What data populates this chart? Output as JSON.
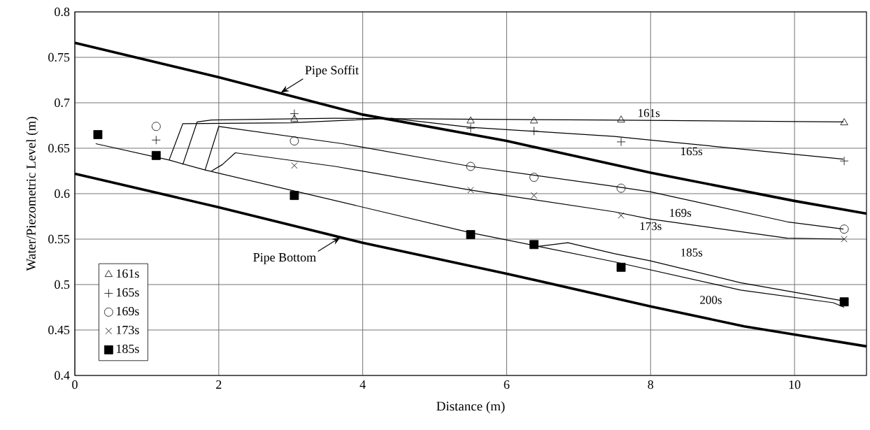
{
  "chart_data": {
    "type": "scatter",
    "xlabel": "Distance (m)",
    "ylabel": "Water/Piezometric Level (m)",
    "xlim": [
      0,
      11
    ],
    "xticks": [
      0,
      2,
      4,
      6,
      8,
      10
    ],
    "ylim": [
      0.4,
      0.8
    ],
    "yticks": [
      0.4,
      0.45,
      0.5,
      0.55,
      0.6,
      0.65,
      0.7,
      0.75,
      0.8
    ],
    "grid": true,
    "legend": "bottom left",
    "series": [
      {
        "type": "line",
        "marker": "none",
        "line_style": "solid",
        "color": "#000000",
        "x": [
          0,
          2,
          4,
          6,
          8,
          10,
          11
        ],
        "values": [
          0.766,
          0.728,
          0.687,
          0.658,
          0.623,
          0.592,
          0.578
        ]
      },
      {
        "type": "line",
        "marker": "none",
        "line_style": "solid",
        "color": "#000000",
        "x": [
          0,
          2,
          4,
          6,
          8,
          9.3,
          10,
          11
        ],
        "values": [
          0.622,
          0.585,
          0.546,
          0.512,
          0.476,
          0.454,
          0.445,
          0.432
        ]
      },
      {
        "name": "161s",
        "type": "line",
        "marker": "none",
        "line_style": "solid",
        "color": "#000000",
        "x": [
          1.5,
          1.7,
          1.9,
          3.6,
          7.31,
          10.68
        ],
        "values": [
          0.632,
          0.679,
          0.681,
          0.683,
          0.681,
          0.679
        ]
      },
      {
        "name": "165s",
        "type": "line",
        "marker": "none",
        "line_style": "solid",
        "color": "#000000",
        "x": [
          1.31,
          1.5,
          3.0,
          4.4,
          5.5,
          7.5,
          8,
          10.68
        ],
        "values": [
          0.637,
          0.677,
          0.678,
          0.683,
          0.673,
          0.663,
          0.659,
          0.638
        ]
      },
      {
        "name": "169s",
        "type": "line",
        "marker": "none",
        "line_style": "solid",
        "color": "#000000",
        "x": [
          1.81,
          2.0,
          3.72,
          5.5,
          7.5,
          8,
          9.9,
          10.68
        ],
        "values": [
          0.626,
          0.674,
          0.655,
          0.63,
          0.608,
          0.602,
          0.569,
          0.561
        ]
      },
      {
        "name": "173s",
        "type": "line",
        "marker": "none",
        "line_style": "solid",
        "color": "#000000",
        "x": [
          1.9,
          2.05,
          2.23,
          3.62,
          5.5,
          7.5,
          8,
          9.9,
          10.68
        ],
        "values": [
          0.625,
          0.632,
          0.645,
          0.63,
          0.604,
          0.58,
          0.572,
          0.551,
          0.55
        ]
      },
      {
        "name": "185s",
        "type": "line",
        "marker": "none",
        "line_style": "solid",
        "color": "#000000",
        "x": [
          0.29,
          1.31,
          1.81,
          3.05,
          5.5,
          6.44,
          6.85,
          7.5,
          8,
          9.25,
          10.68
        ],
        "values": [
          0.655,
          0.637,
          0.626,
          0.603,
          0.557,
          0.542,
          0.546,
          0.534,
          0.526,
          0.502,
          0.482
        ]
      },
      {
        "name": "200s",
        "type": "line",
        "marker": "none",
        "line_style": "solid",
        "color": "#000000",
        "x": [
          6.44,
          7.5,
          9.25,
          10.54,
          10.69
        ],
        "values": [
          0.542,
          0.525,
          0.494,
          0.48,
          0.475
        ]
      },
      {
        "name": "161s",
        "marker": "triangle",
        "color": "#000000",
        "x": [
          3.05,
          5.5,
          6.38,
          7.59,
          10.69
        ],
        "values": [
          0.682,
          0.68,
          0.68,
          0.681,
          0.678
        ]
      },
      {
        "name": "165s",
        "marker": "plus",
        "color": "#000000",
        "x": [
          1.13,
          3.05,
          5.5,
          6.38,
          7.59,
          10.69
        ],
        "values": [
          0.659,
          0.688,
          0.672,
          0.669,
          0.657,
          0.636
        ]
      },
      {
        "name": "169s",
        "marker": "circle",
        "color": "#000000",
        "x": [
          1.13,
          3.05,
          5.5,
          6.38,
          7.59,
          10.69
        ],
        "values": [
          0.674,
          0.658,
          0.63,
          0.618,
          0.606,
          0.561
        ]
      },
      {
        "name": "173s",
        "marker": "cross",
        "color": "#000000",
        "x": [
          3.05,
          5.5,
          6.38,
          7.59,
          10.69
        ],
        "values": [
          0.631,
          0.604,
          0.598,
          0.576,
          0.55
        ]
      },
      {
        "name": "185s",
        "marker": "square",
        "color": "#000000",
        "x": [
          0.32,
          1.13,
          3.05,
          5.5,
          6.38,
          7.59,
          10.69
        ],
        "values": [
          0.665,
          0.642,
          0.598,
          0.555,
          0.544,
          0.519,
          0.481
        ]
      }
    ],
    "annotations": [
      {
        "text": "Pipe Soffit",
        "x": 2.86,
        "y": 0.711
      },
      {
        "text": "Pipe Bottom",
        "x": 3.69,
        "y": 0.552
      }
    ]
  }
}
